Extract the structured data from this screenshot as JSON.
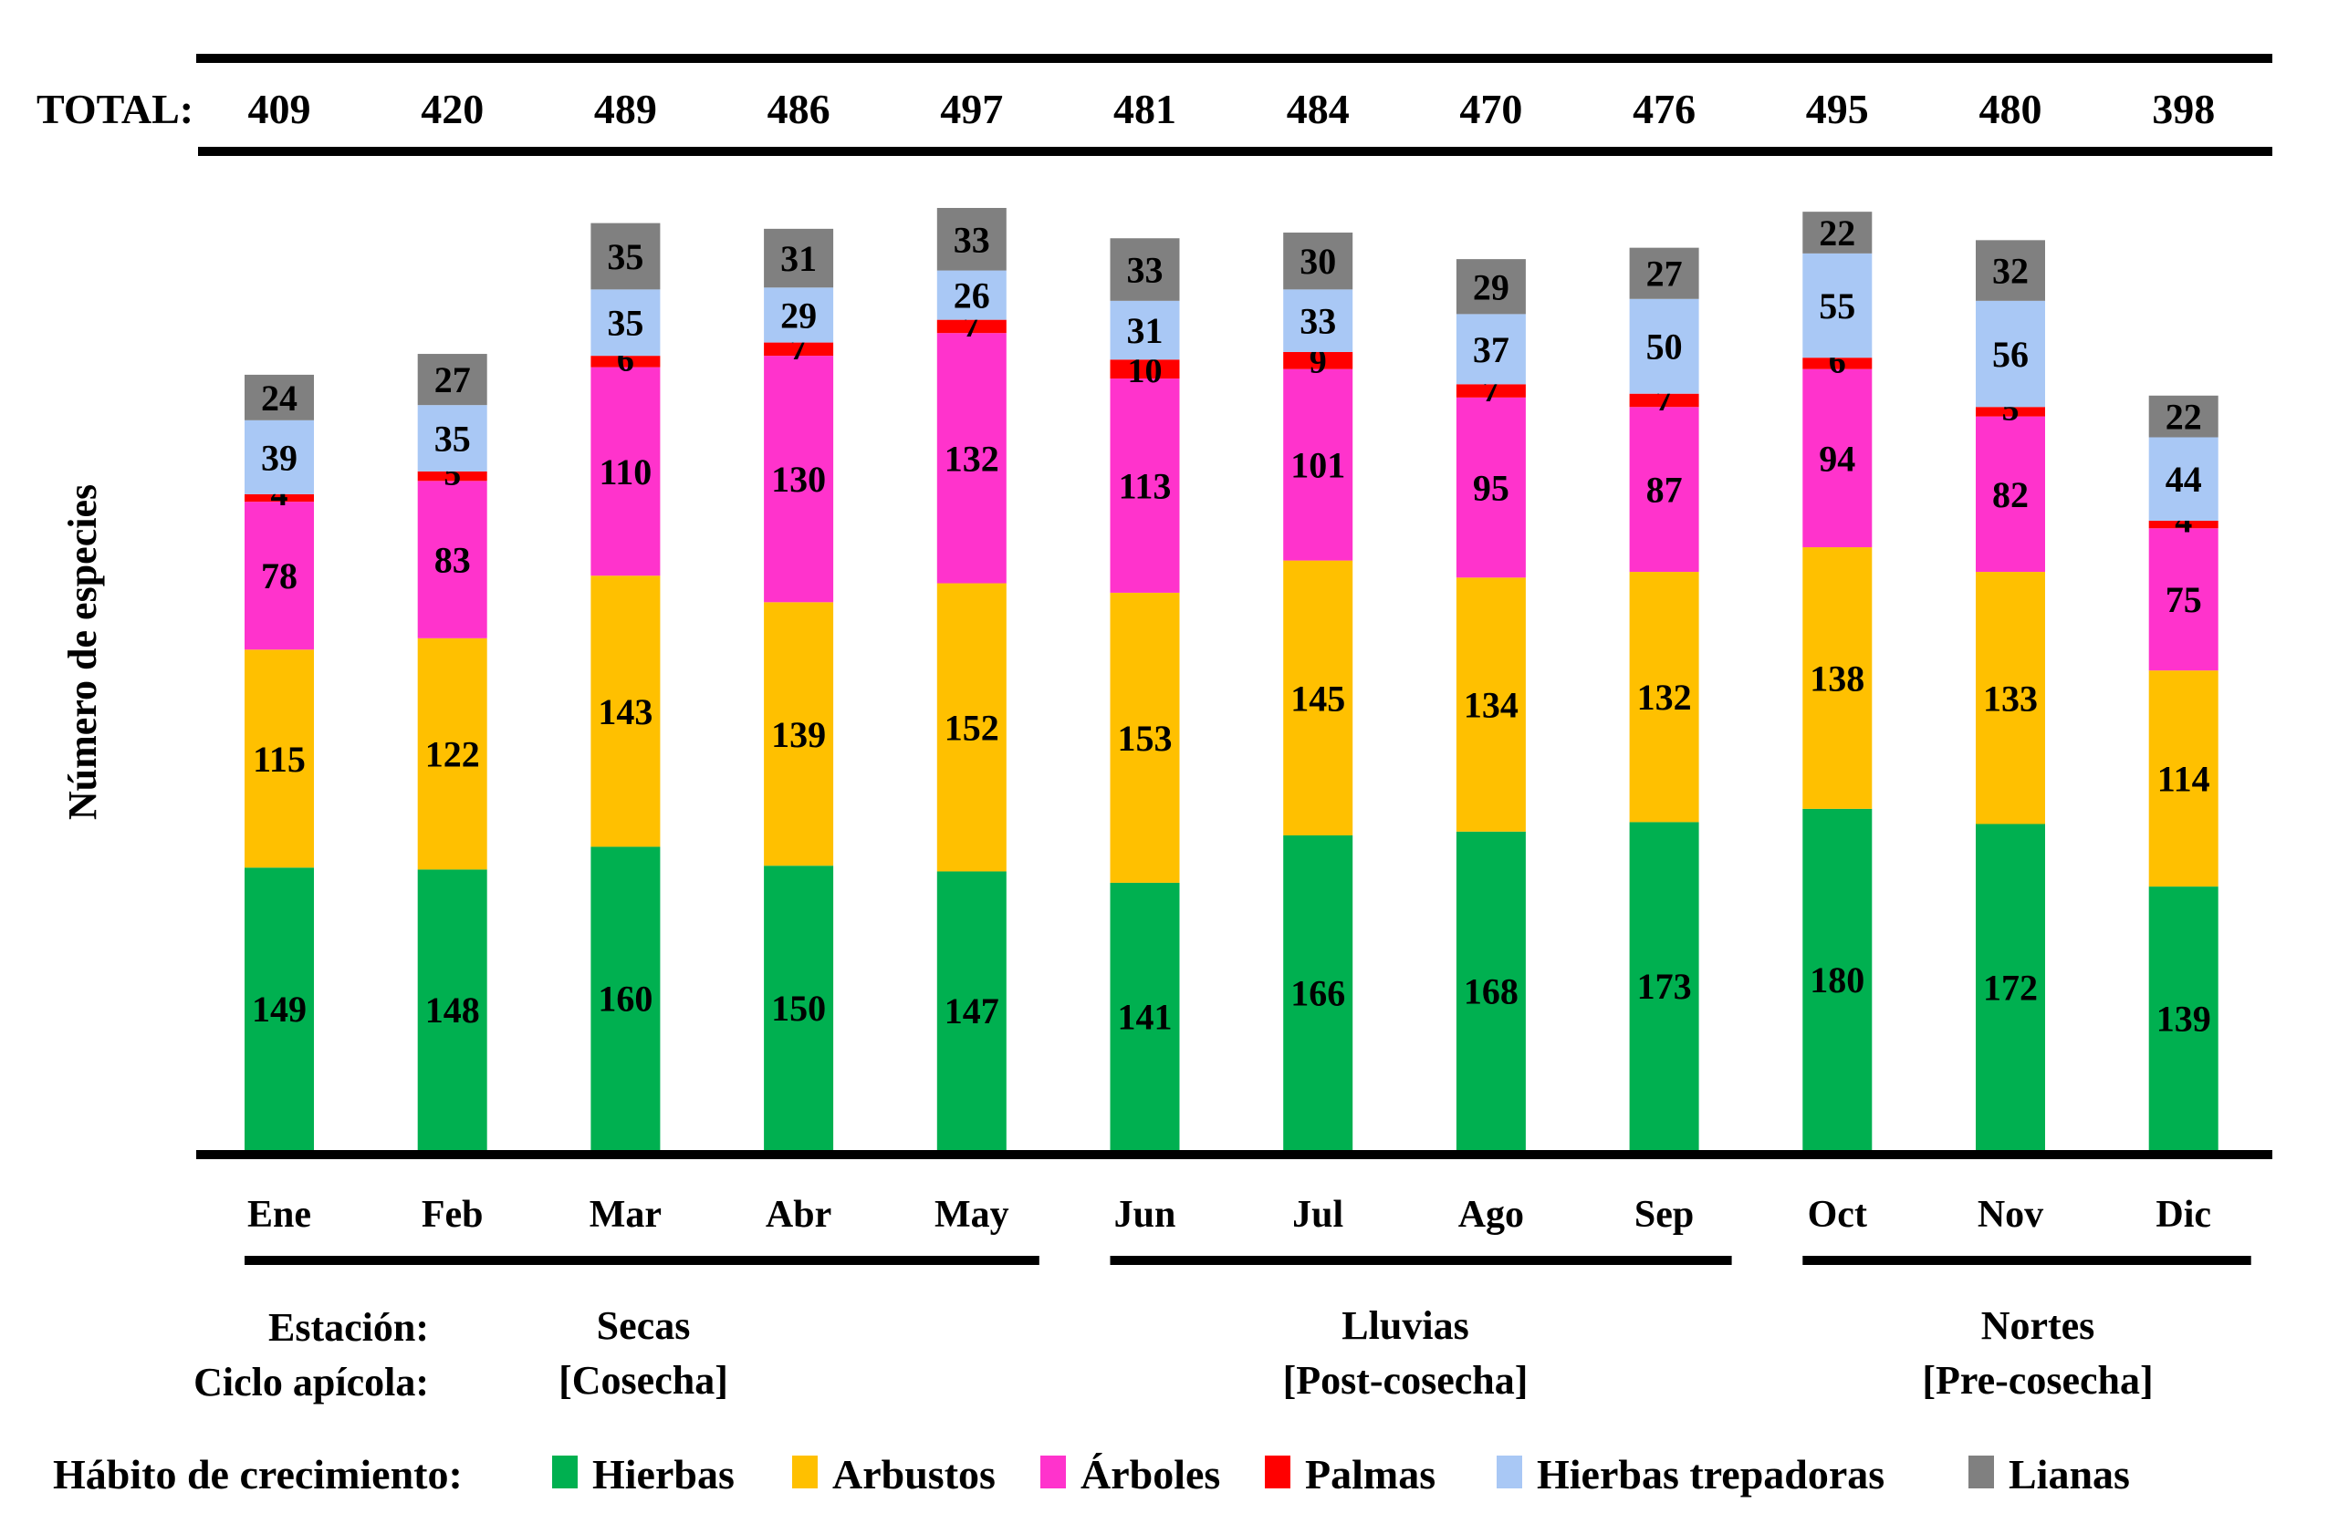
{
  "chart_data": {
    "type": "bar",
    "stacked": true,
    "title": "",
    "xlabel": "",
    "ylabel": "Número de especies",
    "ylim": [
      0,
      497
    ],
    "grid": false,
    "total_label": "TOTAL:",
    "categories": [
      "Ene",
      "Feb",
      "Mar",
      "Abr",
      "May",
      "Jun",
      "Jul",
      "Ago",
      "Sep",
      "Oct",
      "Nov",
      "Dic"
    ],
    "totals": [
      409,
      420,
      489,
      486,
      497,
      481,
      484,
      470,
      476,
      495,
      480,
      398
    ],
    "series": [
      {
        "name": "Hierbas",
        "color": "#00B050",
        "values": [
          149,
          148,
          160,
          150,
          147,
          141,
          166,
          168,
          173,
          180,
          172,
          139
        ]
      },
      {
        "name": "Arbustos",
        "color": "#FFC000",
        "values": [
          115,
          122,
          143,
          139,
          152,
          153,
          145,
          134,
          132,
          138,
          133,
          114
        ]
      },
      {
        "name": "Árboles",
        "color": "#FF33CC",
        "values": [
          78,
          83,
          110,
          130,
          132,
          113,
          101,
          95,
          87,
          94,
          82,
          75
        ]
      },
      {
        "name": "Palmas",
        "color": "#FF0000",
        "values": [
          4,
          5,
          6,
          7,
          7,
          10,
          9,
          7,
          7,
          6,
          5,
          4
        ]
      },
      {
        "name": "Hierbas trepadoras",
        "color": "#A9C8F5",
        "values": [
          39,
          35,
          35,
          29,
          26,
          31,
          33,
          37,
          50,
          55,
          56,
          44
        ]
      },
      {
        "name": "Lianas",
        "color": "#808080",
        "values": [
          24,
          27,
          35,
          31,
          33,
          33,
          30,
          29,
          27,
          22,
          32,
          22
        ]
      }
    ],
    "seasons": {
      "station_label": "Estación:",
      "cycle_label": "Ciclo apícola:",
      "groups": [
        {
          "name": "Secas",
          "cycle": "[Cosecha]",
          "months": [
            "Ene",
            "Feb",
            "Mar",
            "Abr",
            "May"
          ]
        },
        {
          "name": "Lluvias",
          "cycle": "[Post-cosecha]",
          "months": [
            "Jun",
            "Jul",
            "Ago",
            "Sep"
          ]
        },
        {
          "name": "Nortes",
          "cycle": "[Pre-cosecha]",
          "months": [
            "Oct",
            "Nov",
            "Dic"
          ]
        }
      ]
    },
    "legend": {
      "title": "Hábito de crecimiento:",
      "position": "bottom"
    }
  }
}
